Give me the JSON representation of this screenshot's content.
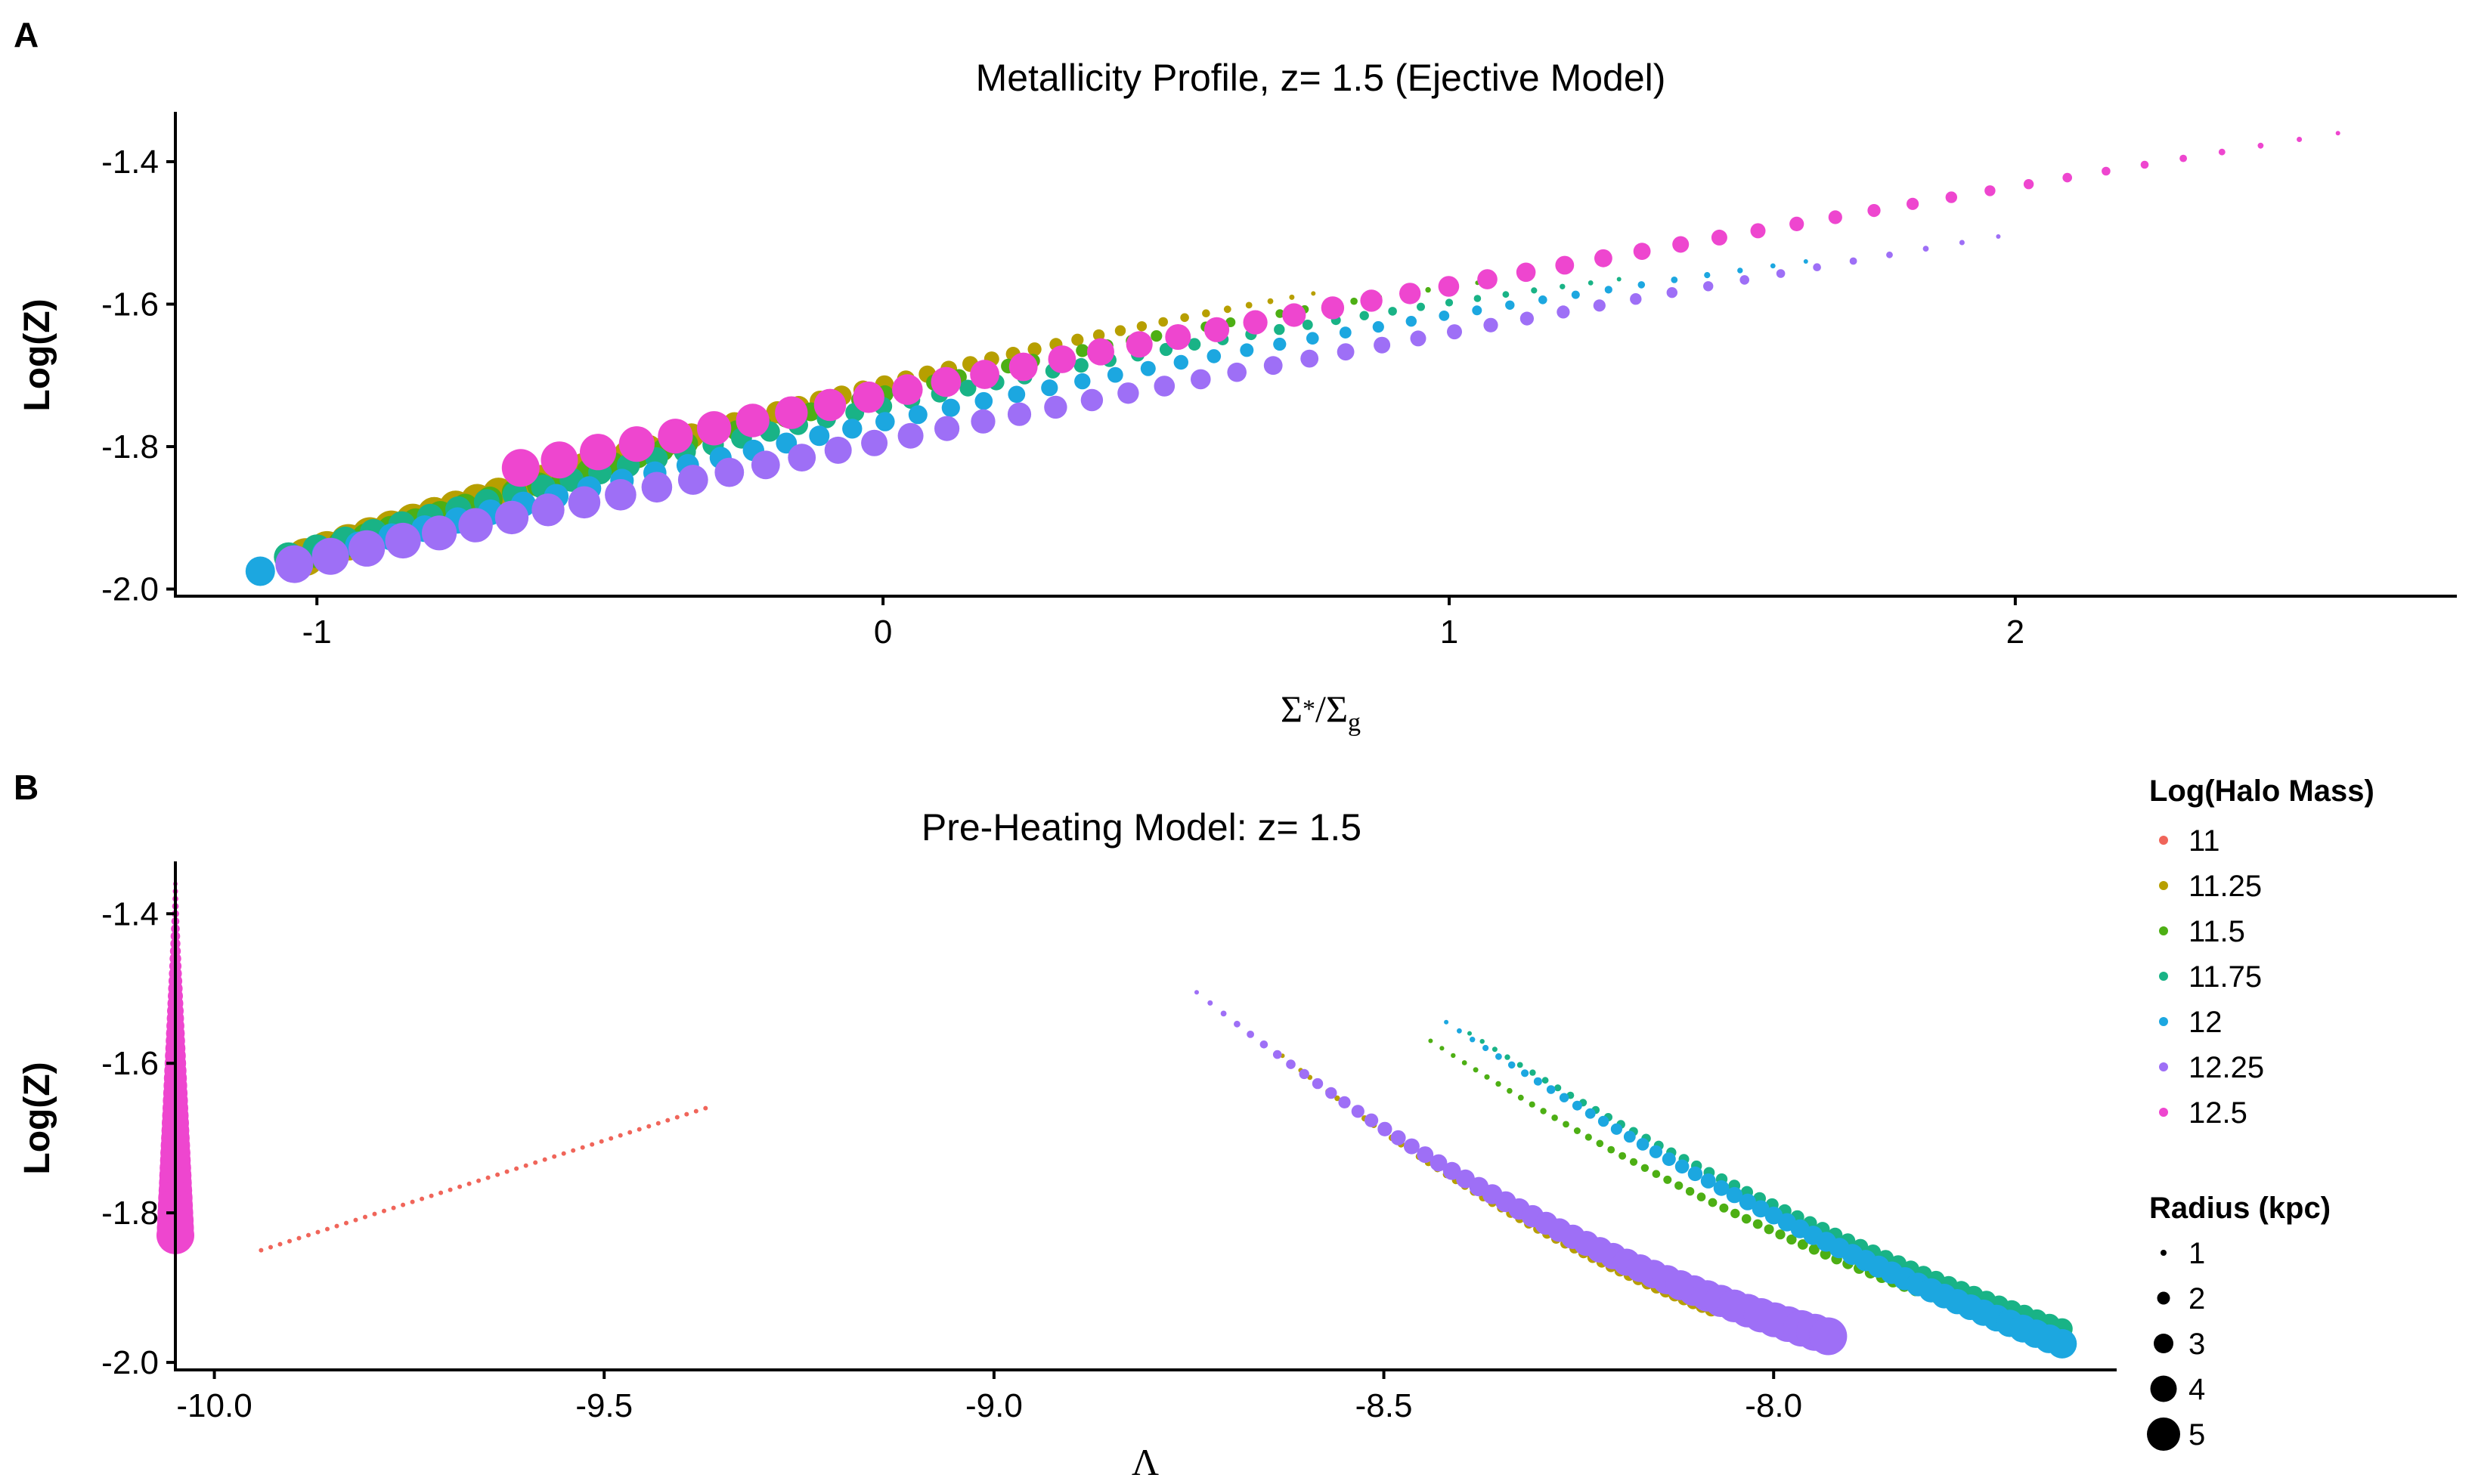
{
  "chart_data": [
    {
      "panel": "A",
      "type": "scatter",
      "title": "Metallicity Profile, z= 1.5 (Ejective Model)",
      "xlabel": "Σ*/Σg",
      "ylabel": "Log(Z)",
      "xlim": [
        -1.25,
        2.78
      ],
      "ylim": [
        -2.01,
        -1.33
      ],
      "xticks": [
        "-1",
        "0",
        "1",
        "2"
      ],
      "yticks": [
        "-1.4",
        "-1.6",
        "-1.8",
        "-2.0"
      ],
      "grid": false,
      "series": [
        {
          "name": "11.25",
          "color": "#B79F00",
          "x_start": -1.02,
          "x_end": 0.76,
          "y_start": -1.955,
          "y_end": -1.585,
          "y_mid": -1.74,
          "r_inner": 5,
          "r_outer": 1
        },
        {
          "name": "11.5",
          "color": "#4DAF14",
          "x_start": -1.0,
          "x_end": 1.05,
          "y_start": -1.95,
          "y_end": -1.57,
          "y_mid": -1.722,
          "r_inner": 4,
          "r_outer": 1
        },
        {
          "name": "11.75",
          "color": "#19B386",
          "x_start": -1.05,
          "x_end": 1.3,
          "y_start": -1.955,
          "y_end": -1.565,
          "y_mid": -1.722,
          "r_inner": 4,
          "r_outer": 1
        },
        {
          "name": "12",
          "color": "#1CA7E0",
          "x_start": -1.1,
          "x_end": 1.63,
          "y_start": -1.975,
          "y_end": -1.54,
          "y_mid": -1.722,
          "r_inner": 4,
          "r_outer": 1
        },
        {
          "name": "12.25",
          "color": "#9E6FF6",
          "x_start": -1.04,
          "x_end": 1.97,
          "y_start": -1.965,
          "y_end": -1.505,
          "y_mid": -1.72,
          "r_inner": 5,
          "r_outer": 1
        },
        {
          "name": "12.5",
          "color": "#EE46CF",
          "x_start": -0.64,
          "x_end": 2.57,
          "y_start": -1.83,
          "y_end": -1.36,
          "y_mid": -1.58,
          "r_inner": 5,
          "r_outer": 1
        }
      ]
    },
    {
      "panel": "B",
      "type": "scatter",
      "title": "Pre-Heating Model: z= 1.5",
      "xlabel": "Λ",
      "ylabel": "Log(Z)",
      "xlim": [
        -10.05,
        -7.56
      ],
      "ylim": [
        -2.01,
        -1.33
      ],
      "xticks": [
        "-10.0",
        "-9.5",
        "-9.0",
        "-8.5",
        "-8.0"
      ],
      "yticks": [
        "-1.4",
        "-1.6",
        "-1.8",
        "-2.0"
      ],
      "grid": false,
      "series": [
        {
          "name": "11",
          "color": "#F0655A",
          "x_start": -9.94,
          "x_end": -9.37,
          "y_start": -1.85,
          "y_end": -1.66,
          "r_inner": 1,
          "r_outer": 1
        },
        {
          "name": "11.25",
          "color": "#B79F00",
          "x_start": -8.63,
          "x_end": -8.08,
          "y_start": -1.59,
          "y_end": -1.93,
          "y_mid": -1.79,
          "r_inner": 1,
          "r_outer": 2
        },
        {
          "name": "11.5",
          "color": "#4DAF14",
          "x_start": -8.44,
          "x_end": -7.76,
          "y_start": -1.57,
          "y_end": -1.925,
          "y_mid": -1.775,
          "r_inner": 1,
          "r_outer": 2
        },
        {
          "name": "11.75",
          "color": "#19B386",
          "x_start": -8.39,
          "x_end": -7.63,
          "y_start": -1.56,
          "y_end": -1.955,
          "y_mid": -1.785,
          "r_inner": 1,
          "r_outer": 3
        },
        {
          "name": "12",
          "color": "#1CA7E0",
          "x_start": -8.42,
          "x_end": -7.63,
          "y_start": -1.545,
          "y_end": -1.975,
          "y_mid": -1.79,
          "r_inner": 1,
          "r_outer": 4
        },
        {
          "name": "12.25",
          "color": "#9E6FF6",
          "x_start": -8.74,
          "x_end": -7.93,
          "y_start": -1.505,
          "y_end": -1.965,
          "y_mid": -1.79,
          "r_inner": 1,
          "r_outer": 5
        },
        {
          "name": "12.5",
          "color": "#EE46CF",
          "x_start": -10.05,
          "x_end": -10.05,
          "y_start": -1.36,
          "y_end": -1.83,
          "r_inner": 1,
          "r_outer": 5
        }
      ]
    }
  ],
  "legend": {
    "color_title": "Log(Halo Mass)",
    "color_items": [
      {
        "label": "11",
        "color": "#F0655A"
      },
      {
        "label": "11.25",
        "color": "#B79F00"
      },
      {
        "label": "11.5",
        "color": "#4DAF14"
      },
      {
        "label": "11.75",
        "color": "#19B386"
      },
      {
        "label": "12",
        "color": "#1CA7E0"
      },
      {
        "label": "12.25",
        "color": "#9E6FF6"
      },
      {
        "label": "12.5",
        "color": "#EE46CF"
      }
    ],
    "size_title": "Radius (kpc)",
    "size_items": [
      "1",
      "2",
      "3",
      "4",
      "5"
    ]
  }
}
